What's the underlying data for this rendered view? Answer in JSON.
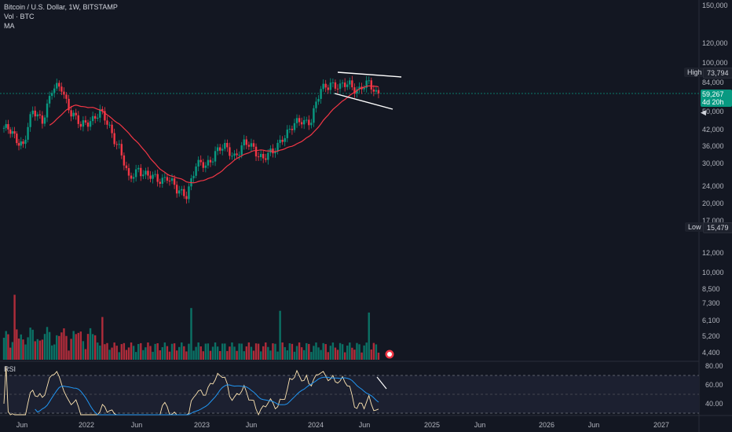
{
  "header": {
    "symbol_line": "Bitcoin / U.S. Dollar, 1W, BITSTAMP",
    "volume_line": "Vol · BTC",
    "ma_line": "MA"
  },
  "price_axis": {
    "labels": [
      "150,000",
      "120,000",
      "100,000",
      "84,000",
      "50,000",
      "42,000",
      "36,000",
      "30,000",
      "24,000",
      "20,000",
      "17,000",
      "12,000",
      "10,000",
      "8,500",
      "7,300",
      "6,100",
      "5,200",
      "4,400"
    ]
  },
  "high": {
    "name": "High",
    "value": "73,794"
  },
  "low": {
    "name": "Low",
    "value": "15,479"
  },
  "current": {
    "price": "59,267",
    "countdown": "4d 20h"
  },
  "rsi": {
    "label": "RSI",
    "axis": [
      "80.00",
      "60.00",
      "40.00"
    ]
  },
  "time_axis": [
    "Jun",
    "2022",
    "Jun",
    "2023",
    "Jun",
    "2024",
    "Jun",
    "2025",
    "Jun",
    "2026",
    "Jun",
    "2027"
  ],
  "colors": {
    "up": "#089981",
    "down": "#f23645",
    "ma": "#f23645",
    "rsi": "#ffe6b3",
    "rsi_ma": "#2196f3",
    "bg": "#131722"
  },
  "chart_data": {
    "type": "candlestick",
    "series": [
      {
        "name": "Bitcoin / U.S. Dollar",
        "kind": "candles"
      },
      {
        "name": "MA",
        "kind": "line"
      },
      {
        "name": "Vol · BTC",
        "kind": "volume"
      },
      {
        "name": "RSI",
        "kind": "line"
      }
    ],
    "close_path": [
      [
        "2021-05",
        38000
      ],
      [
        "2021-07",
        31000
      ],
      [
        "2021-08",
        46000
      ],
      [
        "2021-09",
        43000
      ],
      [
        "2021-10",
        61000
      ],
      [
        "2021-11",
        64000
      ],
      [
        "2021-12",
        47000
      ],
      [
        "2022-01",
        38000
      ],
      [
        "2022-02",
        43000
      ],
      [
        "2022-03",
        46000
      ],
      [
        "2022-04",
        38000
      ],
      [
        "2022-05",
        30000
      ],
      [
        "2022-06",
        19000
      ],
      [
        "2022-07",
        23000
      ],
      [
        "2022-08",
        20000
      ],
      [
        "2022-09",
        19500
      ],
      [
        "2022-10",
        20500
      ],
      [
        "2022-11",
        16500
      ],
      [
        "2022-12",
        16500
      ],
      [
        "2023-01",
        23000
      ],
      [
        "2023-02",
        23500
      ],
      [
        "2023-03",
        28000
      ],
      [
        "2023-04",
        29000
      ],
      [
        "2023-05",
        27000
      ],
      [
        "2023-06",
        30500
      ],
      [
        "2023-07",
        29200
      ],
      [
        "2023-08",
        26000
      ],
      [
        "2023-09",
        27000
      ],
      [
        "2023-10",
        34500
      ],
      [
        "2023-11",
        37700
      ],
      [
        "2023-12",
        42000
      ],
      [
        "2024-01",
        42500
      ],
      [
        "2024-02",
        61000
      ],
      [
        "2024-03",
        69500
      ],
      [
        "2024-04",
        63000
      ],
      [
        "2024-05",
        67500
      ],
      [
        "2024-06",
        62700
      ],
      [
        "2024-07",
        66000
      ],
      [
        "2024-08",
        59267
      ]
    ],
    "annotations": [
      "High 73,794",
      "Low 15,479"
    ]
  }
}
